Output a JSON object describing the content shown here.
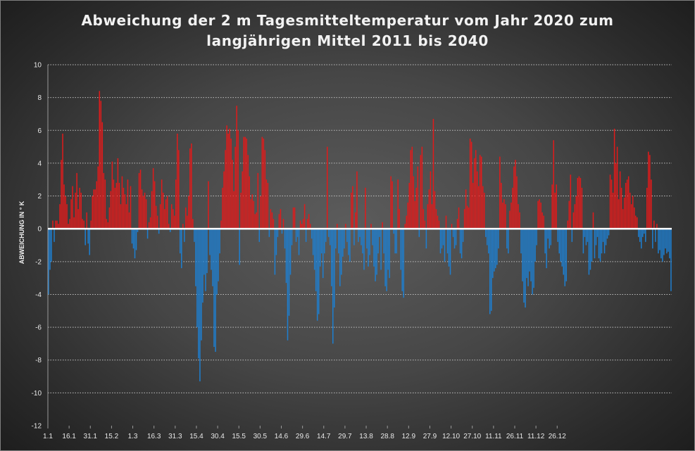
{
  "colors": {
    "positive": "#e01b1b",
    "negative": "#1e7fd0",
    "zero_line": "#ffffff",
    "grid": "#bfbfbf",
    "text": "#eeeeee"
  },
  "chart_data": {
    "type": "bar",
    "title_lines": [
      "Abweichung der 2 m Tagesmitteltemperatur  vom Jahr 2020 zum",
      "langjährigen Mittel 2011 bis 2040"
    ],
    "ylabel": "ABWEICHUNG IN ° K",
    "xlabel": "",
    "ylim": [
      -12,
      10
    ],
    "y_ticks": [
      10,
      8,
      6,
      4,
      2,
      0,
      -2,
      -4,
      -6,
      -8,
      -10,
      -12
    ],
    "x_tick_labels": [
      "1.1",
      "16.1",
      "31.1",
      "15.2",
      "1.3",
      "16.3",
      "31.3",
      "15.4",
      "30.4",
      "15.5",
      "30.5",
      "14.6",
      "29.6",
      "14.7",
      "29.7",
      "13.8",
      "28.8",
      "12.9",
      "27.9",
      "12.10",
      "27.10",
      "11.11",
      "26.11",
      "11.12",
      "26.12"
    ],
    "x_tick_interval_days": 15,
    "grid": "horizontal dotted",
    "legend": "none",
    "series": [
      {
        "values": [
          -4.0,
          -2.5,
          -2.0,
          0.5,
          -0.8,
          0.5,
          0.5,
          0.3,
          1.5,
          4.2,
          5.8,
          2.7,
          2.0,
          1.5,
          0.3,
          0.6,
          1.8,
          2.6,
          0.7,
          2.2,
          3.4,
          1.2,
          2.5,
          2.2,
          0.6,
          0.5,
          -1.0,
          1.0,
          -0.9,
          -1.6,
          0.5,
          2.0,
          2.4,
          2.4,
          2.9,
          3.8,
          8.4,
          7.8,
          6.5,
          3.4,
          3.0,
          0.6,
          0.4,
          1.3,
          2.3,
          4.1,
          3.0,
          2.5,
          2.8,
          4.3,
          2.8,
          1.5,
          3.2,
          2.5,
          2.1,
          1.5,
          3.0,
          1.0,
          2.6,
          -0.9,
          -1.2,
          -1.8,
          -1.3,
          -0.2,
          3.4,
          3.6,
          2.4,
          2.0,
          2.2,
          1.8,
          -0.6,
          0.4,
          0.7,
          2.3,
          3.7,
          2.9,
          1.4,
          0.8,
          -0.3,
          1.5,
          3.0,
          2.2,
          1.2,
          1.8,
          2.0,
          0.3,
          -0.2,
          1.5,
          1.2,
          0.8,
          3.0,
          5.8,
          4.8,
          -1.5,
          -2.4,
          0.3,
          -0.8,
          1.3,
          0.8,
          2.0,
          4.9,
          5.2,
          0.6,
          -0.8,
          -3.5,
          -6.0,
          -7.9,
          -9.3,
          -6.8,
          -4.5,
          -2.8,
          -3.8,
          -2.7,
          2.9,
          -1.6,
          -2.5,
          -3.5,
          -7.2,
          -7.5,
          -4.0,
          -3.2,
          -1.5,
          0.5,
          2.5,
          3.5,
          4.8,
          6.3,
          5.8,
          6.1,
          5.5,
          4.2,
          2.3,
          5.0,
          7.5,
          6.0,
          -2.2,
          2.2,
          3.5,
          5.6,
          5.6,
          5.5,
          4.5,
          3.2,
          1.8,
          2.1,
          1.7,
          0.9,
          1.0,
          3.4,
          -0.8,
          2.0,
          5.6,
          5.5,
          4.8,
          3.0,
          2.8,
          -0.5,
          1.2,
          1.0,
          0.6,
          -2.8,
          -1.6,
          -0.5,
          0.9,
          1.2,
          -0.3,
          0.6,
          -1.2,
          -3.3,
          -6.8,
          -5.3,
          -2.8,
          -1.0,
          1.3,
          1.3,
          -0.8,
          -0.5,
          -1.6,
          0.5,
          0.3,
          0.6,
          1.5,
          -0.8,
          0.6,
          0.9,
          0.3,
          -0.6,
          -1.6,
          -2.5,
          -3.8,
          -5.6,
          -5.2,
          -2.3,
          -1.5,
          -3.0,
          -1.5,
          -0.8,
          5.0,
          -0.5,
          -1.0,
          -3.5,
          -7.0,
          -4.8,
          -1.2,
          0.3,
          -1.5,
          -3.5,
          -2.8,
          -1.7,
          -1.2,
          0.3,
          -0.8,
          -1.6,
          -2.0,
          2.2,
          2.6,
          -1.0,
          1.0,
          3.5,
          -0.8,
          -0.5,
          -1.0,
          -1.5,
          -2.5,
          2.5,
          -1.2,
          -2.3,
          -1.6,
          0.3,
          -1.0,
          -2.3,
          -3.2,
          -2.8,
          -1.5,
          -0.5,
          -2.5,
          0.4,
          -1.5,
          -3.5,
          -3.8,
          -2.5,
          -3.0,
          3.2,
          2.9,
          -0.3,
          -1.5,
          -1.5,
          3.0,
          1.2,
          -2.5,
          -3.8,
          -4.2,
          0.3,
          0.8,
          1.6,
          2.8,
          4.8,
          5.0,
          3.2,
          1.7,
          2.5,
          3.8,
          -0.5,
          4.5,
          5.0,
          1.2,
          0.5,
          -1.2,
          1.5,
          2.4,
          3.5,
          1.5,
          6.7,
          2.3,
          1.2,
          0.8,
          0.5,
          -1.5,
          -1.2,
          -1.0,
          -2.0,
          0.8,
          -1.5,
          -2.3,
          -2.8,
          0.3,
          -0.5,
          -1.2,
          -1.0,
          0.6,
          1.3,
          -1.5,
          -1.8,
          -0.8,
          1.2,
          2.4,
          1.4,
          1.3,
          5.5,
          5.3,
          2.8,
          4.3,
          4.8,
          3.5,
          2.6,
          4.5,
          4.4,
          2.6,
          2.2,
          -0.5,
          -1.0,
          -1.5,
          -5.2,
          -5.0,
          -3.0,
          -2.6,
          -2.4,
          -2.2,
          -1.2,
          4.4,
          2.8,
          1.6,
          1.8,
          1.5,
          -1.2,
          -1.5,
          1.1,
          1.6,
          2.5,
          3.8,
          4.2,
          3.2,
          1.5,
          1.0,
          -1.5,
          -3.2,
          -4.5,
          -4.8,
          -3.0,
          -3.5,
          -2.6,
          -3.2,
          -4.0,
          -3.6,
          -2.0,
          -1.0,
          1.7,
          1.8,
          1.6,
          1.0,
          0.8,
          -1.5,
          -2.4,
          -0.6,
          -1.2,
          -1.0,
          2.7,
          5.4,
          2.2,
          2.7,
          -0.8,
          -1.5,
          -2.0,
          -2.3,
          -2.8,
          -3.5,
          -3.2,
          0.5,
          1.7,
          3.3,
          -0.8,
          1.0,
          1.5,
          2.0,
          3.1,
          3.2,
          3.1,
          2.5,
          -1.5,
          -0.5,
          -1.0,
          -0.8,
          -2.8,
          -2.5,
          -2.0,
          1.0,
          -1.8,
          -1.0,
          -0.5,
          -1.8,
          -2.0,
          -1.5,
          -0.8,
          -1.5,
          -1.0,
          -0.6,
          -0.4,
          3.3,
          3.0,
          2.2,
          6.1,
          4.0,
          5.0,
          1.8,
          3.5,
          2.5,
          1.2,
          1.9,
          2.8,
          3.0,
          3.2,
          2.2,
          1.5,
          2.0,
          1.3,
          0.8,
          0.7,
          -0.5,
          -0.8,
          -1.2,
          -0.5,
          -0.3,
          -0.8,
          2.5,
          4.7,
          4.5,
          3.0,
          -1.2,
          0.5,
          -0.8,
          0.3,
          -1.5,
          -1.3,
          -1.8,
          -2.0,
          -1.6,
          -1.2,
          -1.5,
          -1.4,
          -1.8,
          -3.8
        ]
      }
    ]
  }
}
